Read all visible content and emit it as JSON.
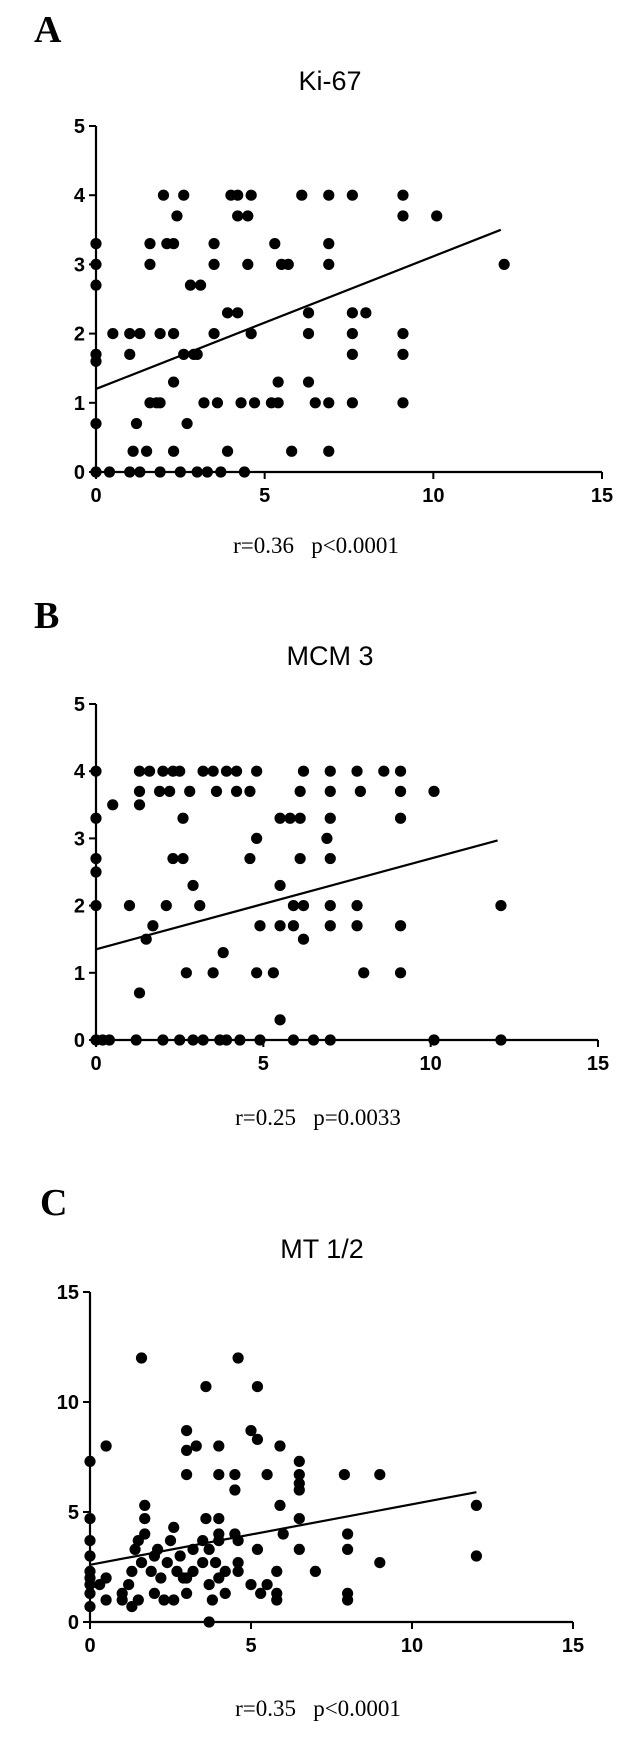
{
  "chart_data": [
    {
      "type": "scatter",
      "panel": "A",
      "title": "Ki-67",
      "xlabel": "",
      "ylabel": "",
      "xlim": [
        0,
        15
      ],
      "ylim": [
        0,
        5
      ],
      "xticks": [
        0,
        5,
        10,
        15
      ],
      "yticks": [
        0,
        1,
        2,
        3,
        4,
        5
      ],
      "grid": false,
      "stats": "r=0.36   p<0.0001",
      "trendline": [
        [
          0,
          1.2
        ],
        [
          12,
          3.5
        ]
      ],
      "points": [
        [
          0,
          0
        ],
        [
          0,
          0.7
        ],
        [
          0,
          1.6
        ],
        [
          0,
          1.7
        ],
        [
          0,
          2.7
        ],
        [
          0,
          3.0
        ],
        [
          0,
          3.3
        ],
        [
          0.4,
          0
        ],
        [
          0.5,
          2.0
        ],
        [
          1,
          0
        ],
        [
          1,
          1.7
        ],
        [
          1,
          2.0
        ],
        [
          1.1,
          0.3
        ],
        [
          1.2,
          0.7
        ],
        [
          1.3,
          0
        ],
        [
          1.3,
          2.0
        ],
        [
          1.5,
          0.3
        ],
        [
          1.6,
          1.0
        ],
        [
          1.6,
          3.0
        ],
        [
          1.6,
          3.3
        ],
        [
          1.8,
          1.0
        ],
        [
          1.9,
          1.0
        ],
        [
          1.9,
          0
        ],
        [
          1.9,
          2.0
        ],
        [
          2.0,
          4.0
        ],
        [
          2.1,
          3.3
        ],
        [
          2.3,
          3.3
        ],
        [
          2.3,
          1.3
        ],
        [
          2.3,
          0.3
        ],
        [
          2.3,
          2.0
        ],
        [
          2.4,
          3.7
        ],
        [
          2.5,
          0
        ],
        [
          2.6,
          1.7
        ],
        [
          2.6,
          4.0
        ],
        [
          2.7,
          0.7
        ],
        [
          2.8,
          2.7
        ],
        [
          2.9,
          1.7
        ],
        [
          3.0,
          1.7
        ],
        [
          3.0,
          0
        ],
        [
          3.1,
          2.7
        ],
        [
          3.2,
          1.0
        ],
        [
          3.3,
          0
        ],
        [
          3.5,
          3.3
        ],
        [
          3.5,
          3.0
        ],
        [
          3.5,
          2.0
        ],
        [
          3.6,
          1.0
        ],
        [
          3.7,
          0
        ],
        [
          3.9,
          0.3
        ],
        [
          3.9,
          2.3
        ],
        [
          4.0,
          4.0
        ],
        [
          4.2,
          2.3
        ],
        [
          4.2,
          3.7
        ],
        [
          4.2,
          4.0
        ],
        [
          4.3,
          1.0
        ],
        [
          4.4,
          0
        ],
        [
          4.5,
          3.7
        ],
        [
          4.6,
          4.0
        ],
        [
          4.5,
          3.0
        ],
        [
          4.6,
          2.0
        ],
        [
          4.7,
          1.0
        ],
        [
          5.2,
          1.0
        ],
        [
          5.3,
          3.3
        ],
        [
          5.4,
          1.3
        ],
        [
          5.4,
          1.0
        ],
        [
          5.5,
          3.0
        ],
        [
          5.7,
          3.0
        ],
        [
          5.8,
          0.3
        ],
        [
          6.1,
          4.0
        ],
        [
          6.3,
          2.3
        ],
        [
          6.3,
          1.3
        ],
        [
          6.3,
          2.0
        ],
        [
          6.5,
          1.0
        ],
        [
          6.9,
          0.3
        ],
        [
          6.9,
          1.0
        ],
        [
          6.9,
          3.0
        ],
        [
          6.9,
          3.3
        ],
        [
          6.9,
          4.0
        ],
        [
          7.6,
          4.0
        ],
        [
          7.6,
          2.3
        ],
        [
          7.6,
          2.0
        ],
        [
          7.6,
          1.7
        ],
        [
          7.6,
          1.0
        ],
        [
          8.0,
          2.3
        ],
        [
          9.1,
          4.0
        ],
        [
          9.1,
          3.7
        ],
        [
          9.1,
          2.0
        ],
        [
          9.1,
          1.7
        ],
        [
          9.1,
          1.0
        ],
        [
          10.1,
          3.7
        ],
        [
          12.1,
          3.0
        ]
      ]
    },
    {
      "type": "scatter",
      "panel": "B",
      "title": "MCM 3",
      "xlabel": "",
      "ylabel": "",
      "xlim": [
        0,
        15
      ],
      "ylim": [
        0,
        5
      ],
      "xticks": [
        0,
        5,
        10,
        15
      ],
      "yticks": [
        0,
        1,
        2,
        3,
        4,
        5
      ],
      "grid": false,
      "stats": "r=0.25   p=0.0033",
      "trendline": [
        [
          0,
          1.35
        ],
        [
          12,
          2.97
        ]
      ],
      "points": [
        [
          0,
          0
        ],
        [
          0,
          2.0
        ],
        [
          0,
          2.5
        ],
        [
          0,
          2.7
        ],
        [
          0,
          3.3
        ],
        [
          0,
          4.0
        ],
        [
          0.2,
          0
        ],
        [
          0.4,
          0
        ],
        [
          0.5,
          3.5
        ],
        [
          1.0,
          2.0
        ],
        [
          1.2,
          0
        ],
        [
          1.3,
          3.5
        ],
        [
          1.3,
          0.7
        ],
        [
          1.3,
          3.7
        ],
        [
          1.3,
          4.0
        ],
        [
          1.5,
          1.5
        ],
        [
          1.6,
          4.0
        ],
        [
          1.7,
          1.7
        ],
        [
          1.9,
          3.7
        ],
        [
          2.0,
          0
        ],
        [
          2.0,
          4.0
        ],
        [
          2.1,
          2.0
        ],
        [
          2.2,
          3.7
        ],
        [
          2.3,
          2.7
        ],
        [
          2.3,
          4.0
        ],
        [
          2.5,
          0
        ],
        [
          2.5,
          4.0
        ],
        [
          2.6,
          2.7
        ],
        [
          2.6,
          3.3
        ],
        [
          2.7,
          1.0
        ],
        [
          2.8,
          3.7
        ],
        [
          2.9,
          0
        ],
        [
          2.9,
          2.3
        ],
        [
          3.1,
          2.0
        ],
        [
          3.2,
          0
        ],
        [
          3.2,
          4.0
        ],
        [
          3.5,
          4.0
        ],
        [
          3.5,
          1.0
        ],
        [
          3.6,
          3.7
        ],
        [
          3.7,
          0
        ],
        [
          3.8,
          1.3
        ],
        [
          3.9,
          4.0
        ],
        [
          3.9,
          0
        ],
        [
          4.2,
          3.7
        ],
        [
          4.2,
          4.0
        ],
        [
          4.3,
          0
        ],
        [
          4.6,
          2.7
        ],
        [
          4.6,
          3.7
        ],
        [
          4.8,
          3.0
        ],
        [
          4.8,
          1.0
        ],
        [
          4.8,
          4.0
        ],
        [
          4.9,
          1.7
        ],
        [
          4.9,
          0
        ],
        [
          5.3,
          1.0
        ],
        [
          5.5,
          0.3
        ],
        [
          5.5,
          1.7
        ],
        [
          5.5,
          2.3
        ],
        [
          5.5,
          3.3
        ],
        [
          5.8,
          3.3
        ],
        [
          5.9,
          0
        ],
        [
          5.9,
          1.7
        ],
        [
          5.9,
          2.0
        ],
        [
          6.1,
          3.3
        ],
        [
          6.2,
          1.5
        ],
        [
          6.1,
          2.7
        ],
        [
          6.1,
          3.7
        ],
        [
          6.2,
          4.0
        ],
        [
          6.2,
          2.0
        ],
        [
          6.5,
          0
        ],
        [
          6.9,
          3.0
        ],
        [
          7.0,
          1.7
        ],
        [
          7.0,
          2.0
        ],
        [
          7.0,
          2.7
        ],
        [
          7.0,
          3.3
        ],
        [
          7.0,
          3.7
        ],
        [
          7.0,
          4.0
        ],
        [
          7.0,
          0
        ],
        [
          7.8,
          2.0
        ],
        [
          7.8,
          1.7
        ],
        [
          7.8,
          4.0
        ],
        [
          7.9,
          3.7
        ],
        [
          8.0,
          1.0
        ],
        [
          8.6,
          4.0
        ],
        [
          9.1,
          1.0
        ],
        [
          9.1,
          1.7
        ],
        [
          9.1,
          3.3
        ],
        [
          9.1,
          3.7
        ],
        [
          9.1,
          4.0
        ],
        [
          10.1,
          3.7
        ],
        [
          10.1,
          0
        ],
        [
          12.1,
          2.0
        ],
        [
          12.1,
          0
        ]
      ]
    },
    {
      "type": "scatter",
      "panel": "C",
      "title": "MT 1/2",
      "xlabel": "",
      "ylabel": "",
      "xlim": [
        0,
        15
      ],
      "ylim": [
        0,
        15
      ],
      "xticks": [
        0,
        5,
        10,
        15
      ],
      "yticks": [
        0,
        5,
        10,
        15
      ],
      "grid": false,
      "stats": "r=0.35   p<0.0001",
      "trendline": [
        [
          0,
          2.6
        ],
        [
          12,
          5.9
        ]
      ],
      "points": [
        [
          0,
          0.7
        ],
        [
          0,
          1.3
        ],
        [
          0,
          1.7
        ],
        [
          0,
          2.0
        ],
        [
          0,
          2.3
        ],
        [
          0,
          3.0
        ],
        [
          0,
          3.7
        ],
        [
          0,
          4.7
        ],
        [
          0,
          7.3
        ],
        [
          0.3,
          1.7
        ],
        [
          0.5,
          1.0
        ],
        [
          0.5,
          2.0
        ],
        [
          0.5,
          8.0
        ],
        [
          1.0,
          1.0
        ],
        [
          1.0,
          1.3
        ],
        [
          1.2,
          1.7
        ],
        [
          1.3,
          0.7
        ],
        [
          1.3,
          2.3
        ],
        [
          1.4,
          3.3
        ],
        [
          1.5,
          1.0
        ],
        [
          1.5,
          3.7
        ],
        [
          1.6,
          2.7
        ],
        [
          1.6,
          12.0
        ],
        [
          1.7,
          4.0
        ],
        [
          1.7,
          4.7
        ],
        [
          1.7,
          5.3
        ],
        [
          1.9,
          2.3
        ],
        [
          2.0,
          3.0
        ],
        [
          2.0,
          1.3
        ],
        [
          2.1,
          3.3
        ],
        [
          2.2,
          2.0
        ],
        [
          2.3,
          1.0
        ],
        [
          2.4,
          2.7
        ],
        [
          2.5,
          3.7
        ],
        [
          2.6,
          1.0
        ],
        [
          2.6,
          4.3
        ],
        [
          2.7,
          2.3
        ],
        [
          2.8,
          3.0
        ],
        [
          2.9,
          2.0
        ],
        [
          3.0,
          6.7
        ],
        [
          3.0,
          7.8
        ],
        [
          3.0,
          8.7
        ],
        [
          3.0,
          1.3
        ],
        [
          3.0,
          2.0
        ],
        [
          3.2,
          2.3
        ],
        [
          3.2,
          3.3
        ],
        [
          3.3,
          8.0
        ],
        [
          3.5,
          2.7
        ],
        [
          3.5,
          3.7
        ],
        [
          3.6,
          10.7
        ],
        [
          3.6,
          4.7
        ],
        [
          3.7,
          1.7
        ],
        [
          3.7,
          0
        ],
        [
          3.7,
          3.3
        ],
        [
          3.8,
          1.0
        ],
        [
          3.9,
          2.7
        ],
        [
          4.0,
          4.0
        ],
        [
          4.0,
          8.0
        ],
        [
          4.0,
          6.7
        ],
        [
          4.0,
          4.7
        ],
        [
          4.0,
          3.7
        ],
        [
          4.0,
          2.0
        ],
        [
          4.2,
          2.3
        ],
        [
          4.2,
          1.3
        ],
        [
          4.5,
          6.7
        ],
        [
          4.5,
          6.0
        ],
        [
          4.5,
          4.0
        ],
        [
          4.6,
          12.0
        ],
        [
          4.6,
          3.7
        ],
        [
          4.6,
          2.7
        ],
        [
          4.6,
          2.3
        ],
        [
          5.0,
          8.7
        ],
        [
          5.0,
          1.7
        ],
        [
          5.2,
          10.7
        ],
        [
          5.2,
          8.3
        ],
        [
          5.2,
          3.3
        ],
        [
          5.3,
          1.3
        ],
        [
          5.5,
          1.7
        ],
        [
          5.5,
          6.7
        ],
        [
          5.8,
          2.3
        ],
        [
          5.8,
          1.0
        ],
        [
          5.8,
          1.3
        ],
        [
          5.9,
          5.3
        ],
        [
          5.9,
          8.0
        ],
        [
          6.0,
          4.0
        ],
        [
          6.5,
          7.3
        ],
        [
          6.5,
          6.7
        ],
        [
          6.5,
          6.3
        ],
        [
          6.5,
          6.0
        ],
        [
          6.5,
          4.7
        ],
        [
          6.5,
          3.3
        ],
        [
          7.0,
          2.3
        ],
        [
          7.9,
          6.7
        ],
        [
          8.0,
          4.0
        ],
        [
          8.0,
          3.3
        ],
        [
          8.0,
          1.3
        ],
        [
          8.0,
          1.0
        ],
        [
          9.0,
          6.7
        ],
        [
          9.0,
          2.7
        ],
        [
          12.0,
          5.3
        ],
        [
          12.0,
          3.0
        ]
      ]
    }
  ]
}
